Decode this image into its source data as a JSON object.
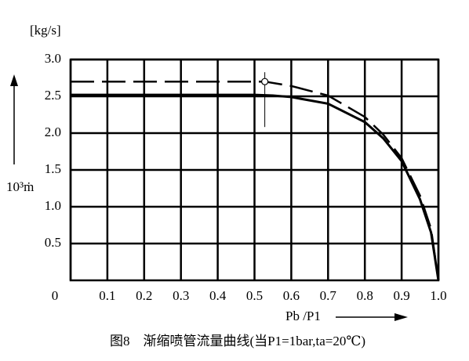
{
  "chart_data": {
    "type": "line",
    "y_unit": "[kg/s]",
    "ylabel": "10³ṁ",
    "xlabel": "Pb /P1",
    "caption": "图8　渐缩喷管流量曲线(当P1=1bar,ta=20℃)",
    "xlim": [
      0,
      1
    ],
    "ylim": [
      0,
      3
    ],
    "xticks": [
      0,
      0.1,
      0.2,
      0.3,
      0.4,
      0.5,
      0.6,
      0.7,
      0.8,
      0.9,
      {
        "value": 1,
        "label": "1.0"
      }
    ],
    "yticks": [
      0.5,
      {
        "value": 1,
        "label": "1.0"
      },
      1.5,
      {
        "value": 2,
        "label": "2.0"
      },
      2.5,
      {
        "value": 3,
        "label": "3.0"
      }
    ],
    "grid": true,
    "series": [
      {
        "color": "#000000",
        "dash": false,
        "x": [
          0,
          0.5,
          0.55,
          0.6,
          0.7,
          0.8,
          0.85,
          0.9,
          0.95,
          0.98,
          1.0
        ],
        "values": [
          2.52,
          2.52,
          2.51,
          2.49,
          2.4,
          2.15,
          1.93,
          1.62,
          1.1,
          0.65,
          0
        ]
      },
      {
        "color": "#000000",
        "dash": true,
        "x": [
          0,
          0.528,
          0.6,
          0.7,
          0.8,
          0.85,
          0.9,
          0.95,
          0.98,
          1.0
        ],
        "values": [
          2.7,
          2.7,
          2.64,
          2.51,
          2.22,
          1.98,
          1.66,
          1.15,
          0.7,
          0
        ]
      }
    ]
  }
}
